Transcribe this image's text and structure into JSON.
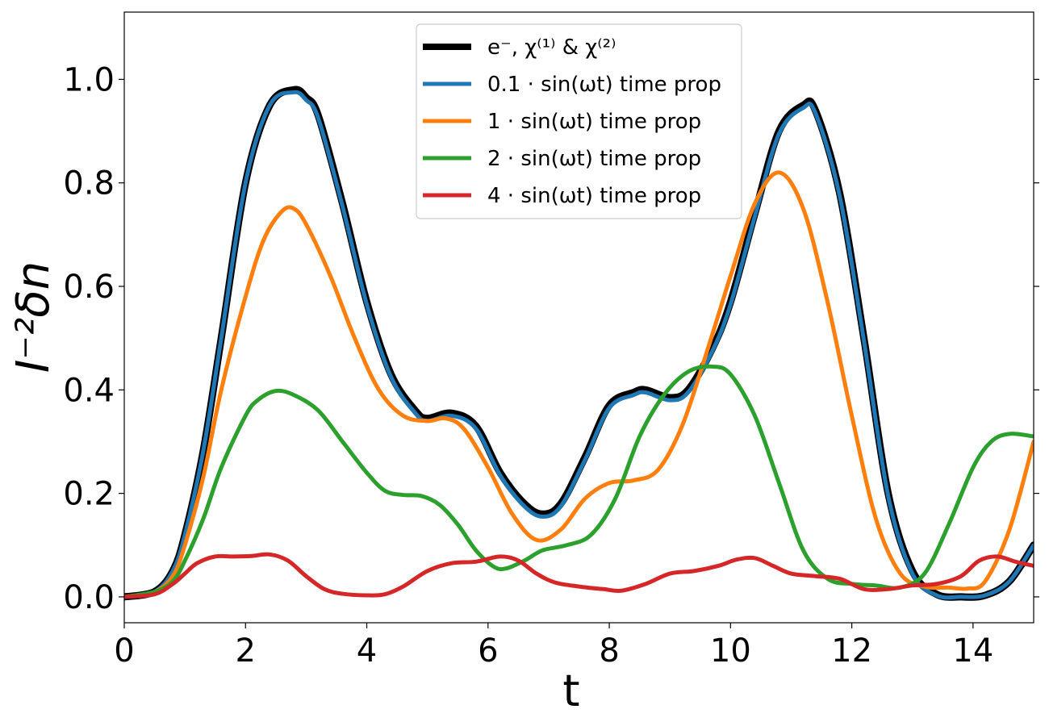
{
  "chart_data": {
    "type": "line",
    "title": "",
    "xlabel": "t",
    "ylabel": "I⁻²δn",
    "xlim": [
      0,
      15
    ],
    "ylim": [
      -0.05,
      1.13
    ],
    "xticks": [
      0,
      2,
      4,
      6,
      8,
      10,
      12,
      14
    ],
    "yticks": [
      0.0,
      0.2,
      0.4,
      0.6,
      0.8,
      1.0
    ],
    "xtick_labels": [
      "0",
      "2",
      "4",
      "6",
      "8",
      "10",
      "12",
      "14"
    ],
    "ytick_labels": [
      "0.0",
      "0.2",
      "0.4",
      "0.6",
      "0.8",
      "1.0"
    ],
    "grid": false,
    "legend_position": "top-center",
    "series": [
      {
        "name": "e⁻, χ⁽¹⁾ & χ⁽²⁾",
        "color": "#000000",
        "x": [
          0,
          0.5,
          0.8,
          1.0,
          1.3,
          1.6,
          2.0,
          2.4,
          2.8,
          3.0,
          3.2,
          3.6,
          4.0,
          4.4,
          4.8,
          5.0,
          5.4,
          5.8,
          6.2,
          6.6,
          6.9,
          7.2,
          7.6,
          8.0,
          8.4,
          8.6,
          9.0,
          9.3,
          9.7,
          10.0,
          10.4,
          10.8,
          11.2,
          11.4,
          11.8,
          12.2,
          12.6,
          13.0,
          13.4,
          13.8,
          14.2,
          14.6,
          15.0
        ],
        "y": [
          0.0,
          0.01,
          0.05,
          0.12,
          0.28,
          0.5,
          0.8,
          0.95,
          0.98,
          0.965,
          0.93,
          0.76,
          0.57,
          0.43,
          0.36,
          0.345,
          0.355,
          0.33,
          0.24,
          0.18,
          0.16,
          0.18,
          0.27,
          0.37,
          0.395,
          0.4,
          0.385,
          0.4,
          0.48,
          0.57,
          0.74,
          0.9,
          0.95,
          0.94,
          0.78,
          0.5,
          0.2,
          0.05,
          0.005,
          0.0,
          0.003,
          0.03,
          0.1
        ]
      },
      {
        "name": "0.1 · sin(ωt) time prop",
        "color": "#1f77b4",
        "x": [
          0,
          0.5,
          0.8,
          1.0,
          1.3,
          1.6,
          2.0,
          2.4,
          2.8,
          3.0,
          3.2,
          3.6,
          4.0,
          4.4,
          4.8,
          5.0,
          5.4,
          5.8,
          6.2,
          6.6,
          6.9,
          7.2,
          7.6,
          8.0,
          8.4,
          8.6,
          9.0,
          9.3,
          9.7,
          10.0,
          10.4,
          10.8,
          11.2,
          11.4,
          11.8,
          12.2,
          12.6,
          13.0,
          13.4,
          13.8,
          14.2,
          14.6,
          15.0
        ],
        "y": [
          0.0,
          0.01,
          0.05,
          0.12,
          0.28,
          0.5,
          0.8,
          0.95,
          0.975,
          0.96,
          0.925,
          0.755,
          0.565,
          0.425,
          0.355,
          0.34,
          0.35,
          0.325,
          0.235,
          0.175,
          0.155,
          0.175,
          0.265,
          0.365,
          0.39,
          0.395,
          0.38,
          0.395,
          0.475,
          0.565,
          0.735,
          0.895,
          0.945,
          0.935,
          0.775,
          0.495,
          0.195,
          0.045,
          0.003,
          0.0,
          0.003,
          0.03,
          0.1
        ]
      },
      {
        "name": "1 · sin(ωt) time prop",
        "color": "#ff7f0e",
        "x": [
          0,
          0.5,
          0.8,
          1.0,
          1.3,
          1.6,
          2.0,
          2.3,
          2.6,
          2.8,
          3.0,
          3.4,
          3.8,
          4.2,
          4.6,
          5.0,
          5.3,
          5.6,
          6.0,
          6.4,
          6.8,
          7.2,
          7.6,
          8.0,
          8.4,
          8.8,
          9.2,
          9.6,
          10.0,
          10.4,
          10.8,
          11.2,
          11.6,
          12.0,
          12.4,
          12.8,
          13.2,
          13.6,
          13.9,
          14.2,
          14.6,
          15.0
        ],
        "y": [
          0.0,
          0.01,
          0.04,
          0.1,
          0.23,
          0.4,
          0.58,
          0.69,
          0.745,
          0.75,
          0.72,
          0.62,
          0.5,
          0.4,
          0.35,
          0.34,
          0.345,
          0.325,
          0.25,
          0.16,
          0.11,
          0.13,
          0.19,
          0.22,
          0.225,
          0.245,
          0.33,
          0.47,
          0.62,
          0.76,
          0.82,
          0.75,
          0.57,
          0.35,
          0.15,
          0.045,
          0.02,
          0.018,
          0.016,
          0.03,
          0.13,
          0.3
        ]
      },
      {
        "name": "2 · sin(ωt) time prop",
        "color": "#2ca02c",
        "x": [
          0,
          0.5,
          0.8,
          1.0,
          1.3,
          1.6,
          2.0,
          2.2,
          2.5,
          2.8,
          3.2,
          3.6,
          4.0,
          4.3,
          4.6,
          4.9,
          5.2,
          5.5,
          5.8,
          6.1,
          6.3,
          6.6,
          6.9,
          7.3,
          7.7,
          8.1,
          8.5,
          8.9,
          9.3,
          9.7,
          10.0,
          10.4,
          10.8,
          11.2,
          11.6,
          12.0,
          12.4,
          12.8,
          13.2,
          13.6,
          14.0,
          14.3,
          14.6,
          15.0
        ],
        "y": [
          0.0,
          0.01,
          0.03,
          0.07,
          0.15,
          0.25,
          0.35,
          0.38,
          0.398,
          0.39,
          0.36,
          0.3,
          0.24,
          0.205,
          0.197,
          0.195,
          0.178,
          0.14,
          0.09,
          0.058,
          0.055,
          0.07,
          0.09,
          0.1,
          0.12,
          0.19,
          0.31,
          0.39,
          0.435,
          0.445,
          0.43,
          0.35,
          0.22,
          0.09,
          0.035,
          0.025,
          0.022,
          0.018,
          0.045,
          0.14,
          0.25,
          0.3,
          0.315,
          0.31
        ]
      },
      {
        "name": "4 · sin(ωt) time prop",
        "color": "#d62728",
        "x": [
          0,
          0.5,
          0.8,
          1.0,
          1.2,
          1.5,
          1.8,
          2.1,
          2.4,
          2.7,
          3.0,
          3.3,
          3.6,
          4.0,
          4.3,
          4.6,
          5.0,
          5.4,
          5.8,
          6.2,
          6.5,
          6.8,
          7.1,
          7.5,
          7.9,
          8.2,
          8.6,
          9.0,
          9.4,
          9.8,
          10.1,
          10.4,
          10.7,
          11.0,
          11.4,
          11.8,
          12.2,
          12.6,
          13.0,
          13.4,
          13.8,
          14.1,
          14.4,
          14.7,
          15.0
        ],
        "y": [
          0.0,
          0.005,
          0.025,
          0.045,
          0.065,
          0.078,
          0.078,
          0.079,
          0.082,
          0.07,
          0.04,
          0.015,
          0.006,
          0.003,
          0.005,
          0.02,
          0.05,
          0.065,
          0.068,
          0.078,
          0.07,
          0.045,
          0.028,
          0.02,
          0.015,
          0.012,
          0.025,
          0.045,
          0.05,
          0.06,
          0.072,
          0.075,
          0.06,
          0.045,
          0.04,
          0.035,
          0.015,
          0.015,
          0.022,
          0.025,
          0.04,
          0.07,
          0.078,
          0.068,
          0.06
        ]
      }
    ]
  }
}
